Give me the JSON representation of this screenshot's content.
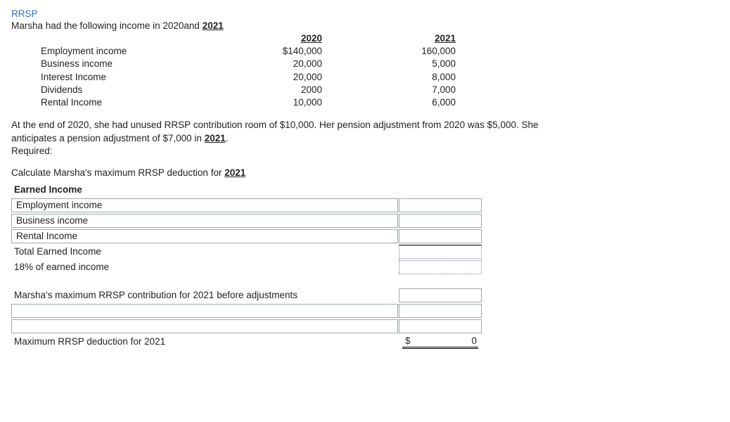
{
  "header": {
    "title": "RRSP",
    "intro_prefix": "Marsha had the following income in 2020and ",
    "intro_bold": "2021"
  },
  "income": {
    "col1": "2020",
    "col2": "2021",
    "rows": [
      {
        "label": "Employment income",
        "v1": "$140,000",
        "v2": "160,000"
      },
      {
        "label": "Business income",
        "v1": "20,000",
        "v2": "5,000"
      },
      {
        "label": "Interest Income",
        "v1": "20,000",
        "v2": "8,000"
      },
      {
        "label": "Dividends",
        "v1": "2000",
        "v2": "7,000"
      },
      {
        "label": "Rental Income",
        "v1": "10,000",
        "v2": "6,000"
      }
    ]
  },
  "paragraph": {
    "line1a": "At the end of 2020, she had unused RRSP contribution room of $10,000.  Her pension adjustment from 2020 was $5,000.  She",
    "line2a": "anticipates a pension adjustment of $7,000 in ",
    "line2b": "2021",
    "line2c": ".",
    "required": "Required:"
  },
  "calc_heading_prefix": "Calculate Marsha's maximum RRSP deduction for ",
  "calc_heading_bold": "2021",
  "calc": {
    "section_label": "Earned Income",
    "rows": {
      "emp": "Employment income",
      "bus": "Business income",
      "rent": "Rental Income",
      "total": "Total Earned Income",
      "pct": "18% of earned income",
      "before": "Marsha's maximum RRSP contribution for 2021 before adjustments",
      "max": "Maximum RRSP deduction for 2021"
    },
    "result_symbol": "$",
    "result_value": "0"
  }
}
